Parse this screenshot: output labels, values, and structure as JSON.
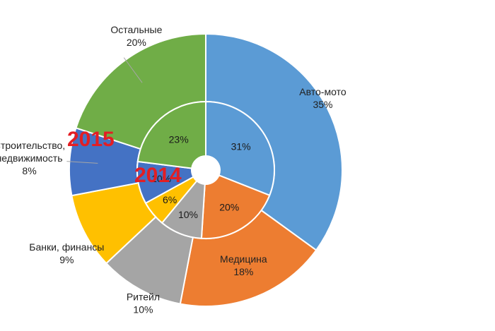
{
  "chart_data": {
    "type": "pie",
    "variant": "double-donut",
    "categories": [
      "Авто-мото",
      "Медицина",
      "Ритейл",
      "Банки, финансы",
      "Строительство, недвижимость",
      "Остальные"
    ],
    "series": [
      {
        "name": "2014",
        "ring": "inner",
        "values": [
          31,
          20,
          10,
          6,
          10,
          23
        ]
      },
      {
        "name": "2015",
        "ring": "outer",
        "values": [
          35,
          18,
          10,
          9,
          8,
          20
        ]
      }
    ],
    "category_labels_outer": [
      [
        "Авто-мото"
      ],
      [
        "Медицина"
      ],
      [
        "Ритейл"
      ],
      [
        "Банки, финансы"
      ],
      [
        "Строительство,",
        "недвижимость"
      ],
      [
        "Остальные"
      ]
    ],
    "colors": [
      "#5b9bd5",
      "#ed7d31",
      "#a5a5a5",
      "#ffc000",
      "#4472c4",
      "#70ad47"
    ],
    "year_label_color": "#e31e24",
    "value_suffix": "%"
  }
}
